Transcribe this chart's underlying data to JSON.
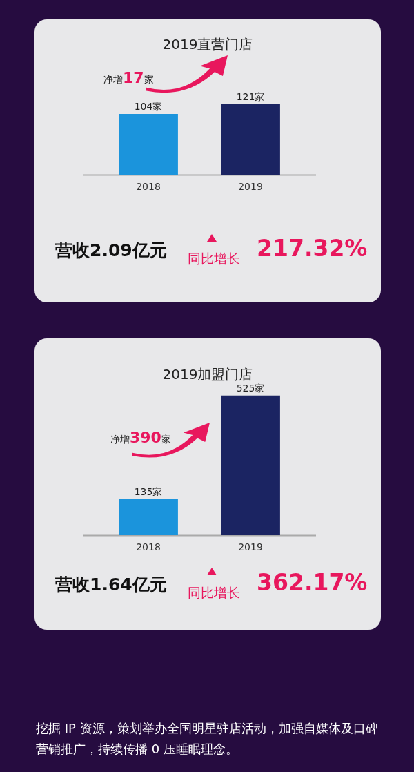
{
  "chart_data": [
    {
      "type": "bar",
      "title": "2019直营门店",
      "categories": [
        "2018",
        "2019"
      ],
      "values": [
        104,
        121
      ],
      "value_labels": [
        "104家",
        "121家"
      ],
      "colors": [
        "#1b94dc",
        "#1b2462"
      ],
      "annotations": [
        "净增17家",
        "营收2.09亿元",
        "同比增长",
        "217.32%"
      ]
    },
    {
      "type": "bar",
      "title": "2019加盟门店",
      "categories": [
        "2018",
        "2019"
      ],
      "values": [
        135,
        525
      ],
      "value_labels": [
        "135家",
        "525家"
      ],
      "colors": [
        "#1b94dc",
        "#1b2462"
      ],
      "annotations": [
        "净增390家",
        "营收1.64亿元",
        "同比增长",
        "362.17%",
        "挖掘 IP 资源，策划举办全国明星驻店活动，加强自媒体及口碑营销推广，持续传播 0 压睡眠理念。"
      ]
    }
  ]
}
